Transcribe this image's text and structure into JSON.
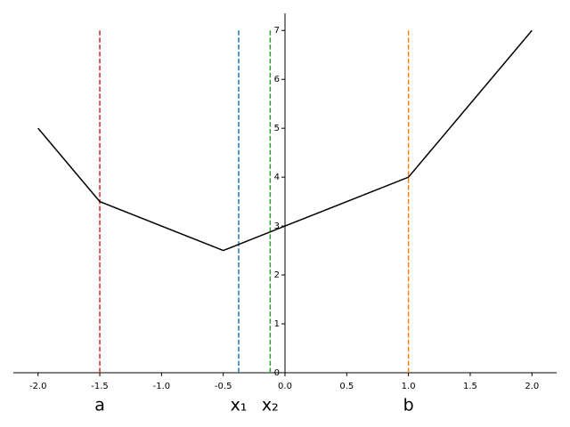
{
  "chart_data": {
    "type": "line",
    "x": [
      -2,
      -1.5,
      -0.5,
      0,
      1,
      2
    ],
    "series": [
      {
        "color": "#000000",
        "values": [
          5,
          3.5,
          2.5,
          3,
          4,
          7
        ]
      }
    ],
    "xlim": [
      -2.2,
      2.2
    ],
    "ylim": [
      0,
      7.35
    ],
    "xticks": [
      {
        "value": -2,
        "label": "-2.0"
      },
      {
        "value": -1.5,
        "label": "-1.5"
      },
      {
        "value": -1,
        "label": "-1.0"
      },
      {
        "value": -0.5,
        "label": "-0.5"
      },
      {
        "value": 0,
        "label": "0.0"
      },
      {
        "value": 0.5,
        "label": "0.5"
      },
      {
        "value": 1,
        "label": "1.0"
      },
      {
        "value": 1.5,
        "label": "1.5"
      },
      {
        "value": 2,
        "label": "2.0"
      }
    ],
    "yticks": [
      0,
      1,
      2,
      3,
      4,
      5,
      6,
      7
    ],
    "vlines": [
      {
        "label": "a",
        "x": -1.5,
        "color": "#d62728",
        "top": 7
      },
      {
        "label": "x₁",
        "x": -0.375,
        "color": "#1f77b4",
        "top": 7
      },
      {
        "label": "x₂",
        "x": -0.12,
        "color": "#2ca02c",
        "top": 7
      },
      {
        "label": "b",
        "x": 1,
        "color": "#ff7f0e",
        "top": 7
      }
    ]
  }
}
